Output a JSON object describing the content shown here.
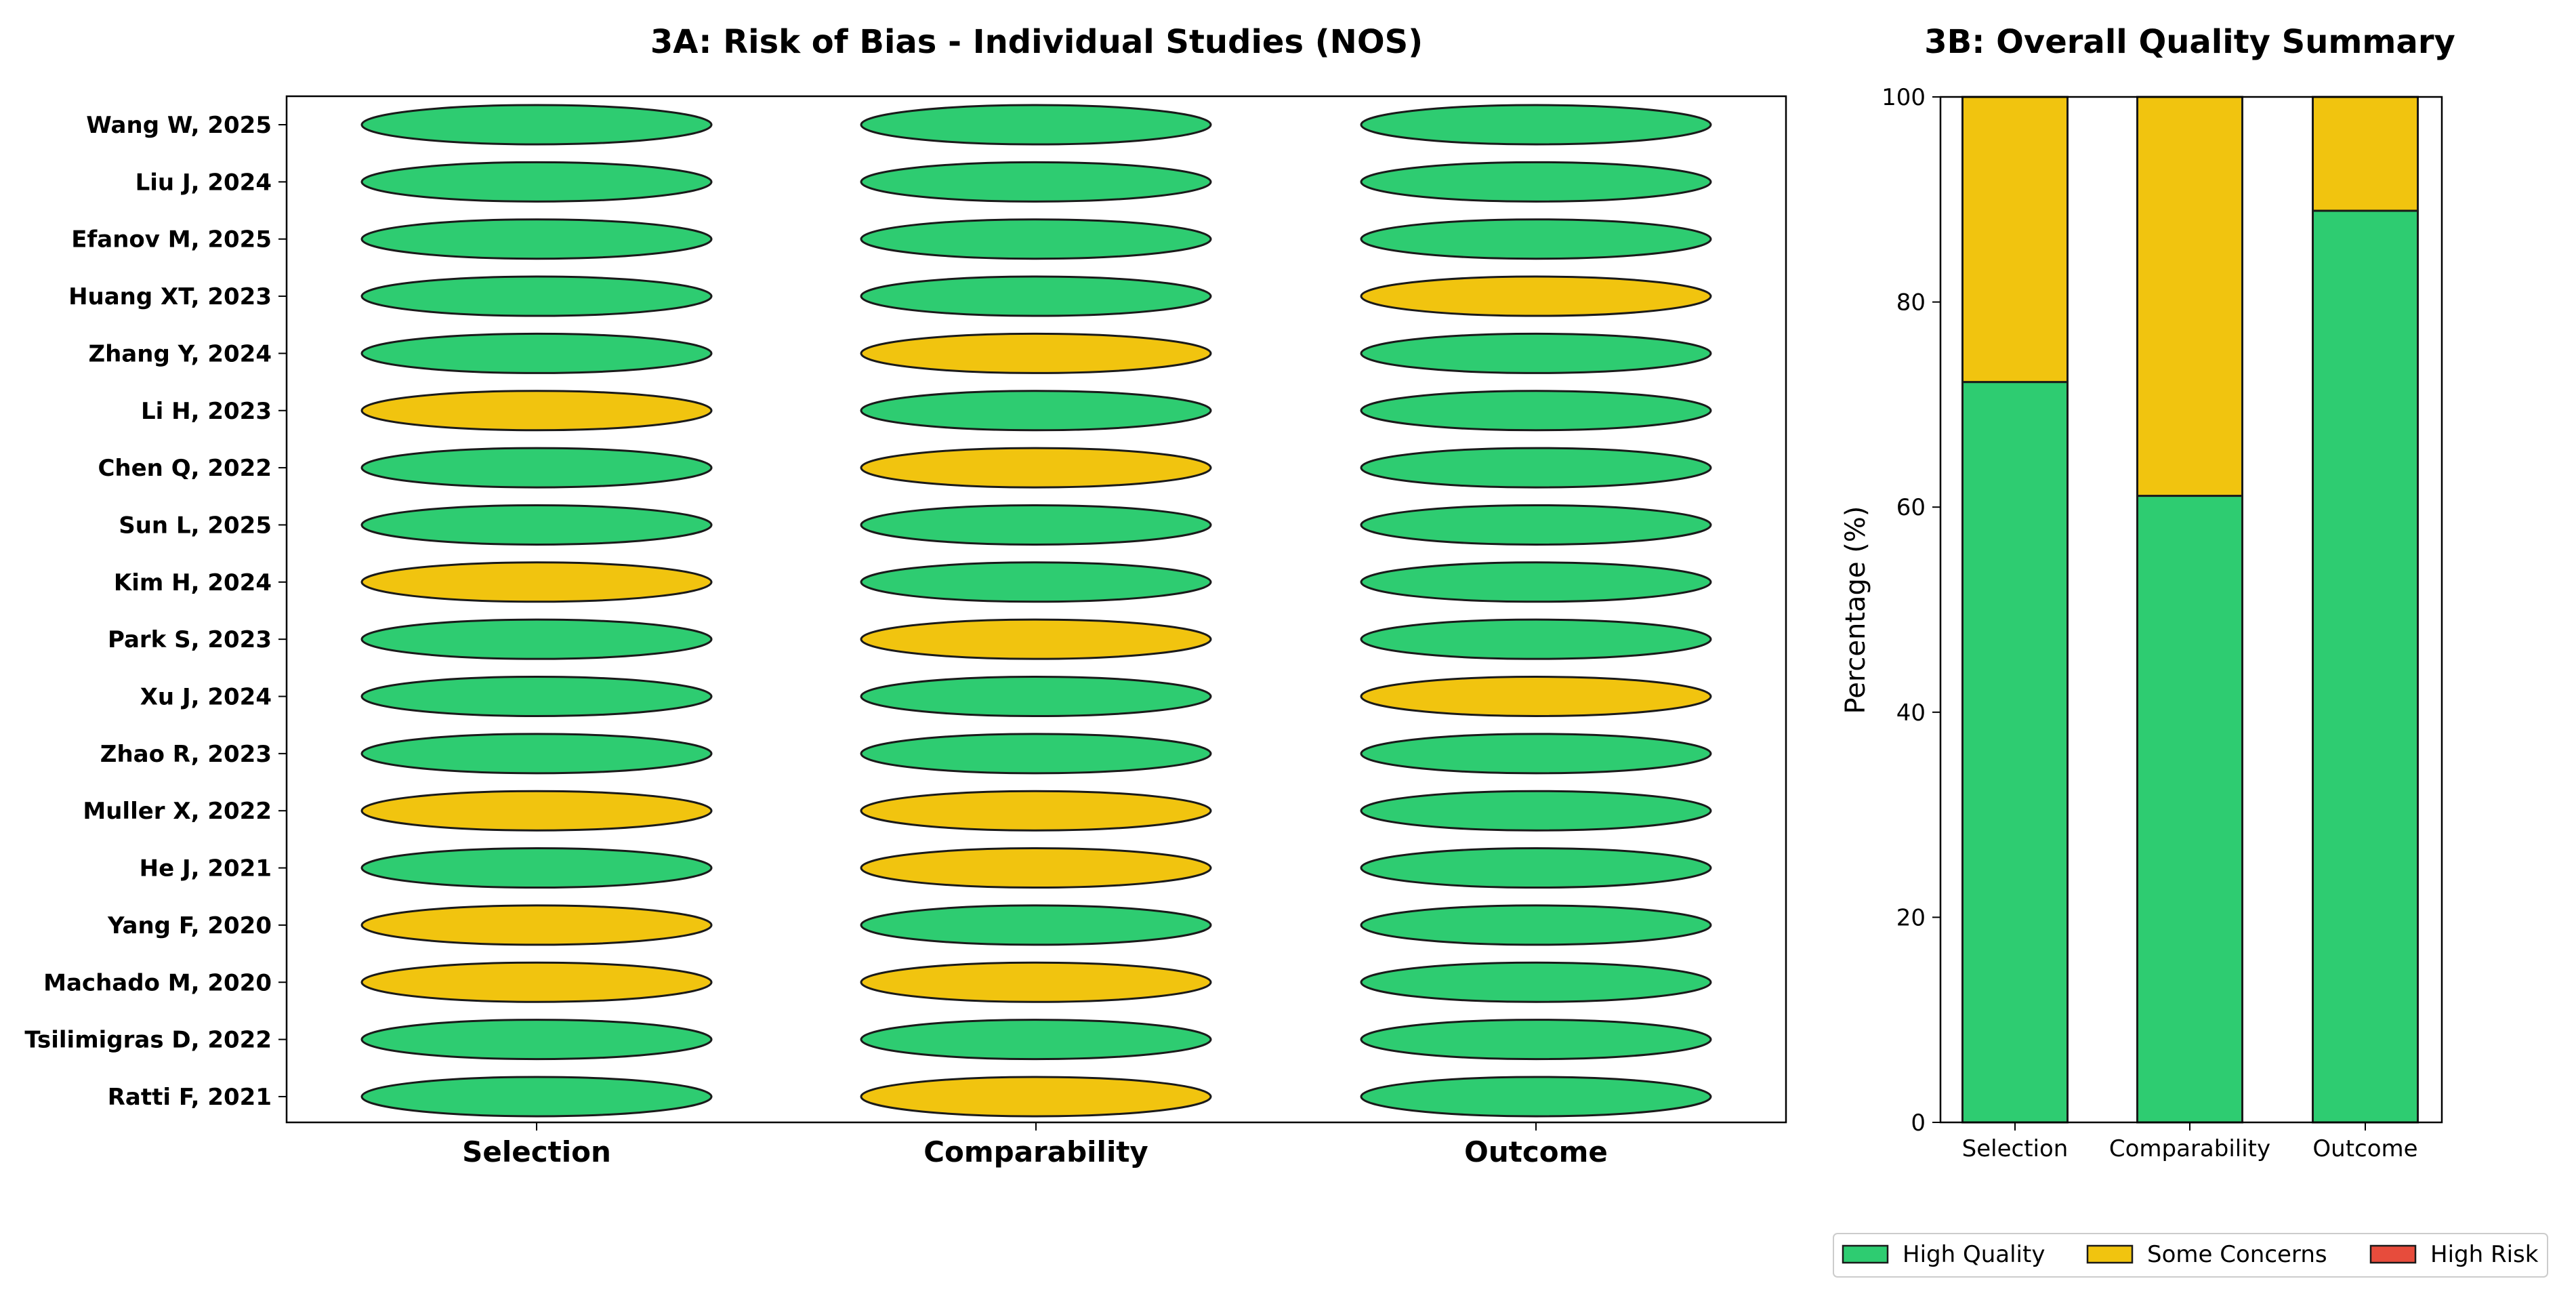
{
  "chart_data": [
    {
      "type": "table",
      "title": "3A: Risk of Bias - Individual Studies (NOS)",
      "domains": [
        "Selection",
        "Comparability",
        "Outcome"
      ],
      "studies": [
        {
          "name": "Wang W, 2025",
          "ratings": [
            "High Quality",
            "High Quality",
            "High Quality"
          ]
        },
        {
          "name": "Liu J, 2024",
          "ratings": [
            "High Quality",
            "High Quality",
            "High Quality"
          ]
        },
        {
          "name": "Efanov M, 2025",
          "ratings": [
            "High Quality",
            "High Quality",
            "High Quality"
          ]
        },
        {
          "name": "Huang XT, 2023",
          "ratings": [
            "High Quality",
            "High Quality",
            "Some Concerns"
          ]
        },
        {
          "name": "Zhang Y, 2024",
          "ratings": [
            "High Quality",
            "Some Concerns",
            "High Quality"
          ]
        },
        {
          "name": "Li H, 2023",
          "ratings": [
            "Some Concerns",
            "High Quality",
            "High Quality"
          ]
        },
        {
          "name": "Chen Q, 2022",
          "ratings": [
            "High Quality",
            "Some Concerns",
            "High Quality"
          ]
        },
        {
          "name": "Sun L, 2025",
          "ratings": [
            "High Quality",
            "High Quality",
            "High Quality"
          ]
        },
        {
          "name": "Kim H, 2024",
          "ratings": [
            "Some Concerns",
            "High Quality",
            "High Quality"
          ]
        },
        {
          "name": "Park S, 2023",
          "ratings": [
            "High Quality",
            "Some Concerns",
            "High Quality"
          ]
        },
        {
          "name": "Xu J, 2024",
          "ratings": [
            "High Quality",
            "High Quality",
            "Some Concerns"
          ]
        },
        {
          "name": "Zhao R, 2023",
          "ratings": [
            "High Quality",
            "High Quality",
            "High Quality"
          ]
        },
        {
          "name": "Muller X, 2022",
          "ratings": [
            "Some Concerns",
            "Some Concerns",
            "High Quality"
          ]
        },
        {
          "name": "He J, 2021",
          "ratings": [
            "High Quality",
            "Some Concerns",
            "High Quality"
          ]
        },
        {
          "name": "Yang F, 2020",
          "ratings": [
            "Some Concerns",
            "High Quality",
            "High Quality"
          ]
        },
        {
          "name": "Machado M, 2020",
          "ratings": [
            "Some Concerns",
            "Some Concerns",
            "High Quality"
          ]
        },
        {
          "name": "Tsilimigras D, 2022",
          "ratings": [
            "High Quality",
            "High Quality",
            "High Quality"
          ]
        },
        {
          "name": "Ratti F, 2021",
          "ratings": [
            "High Quality",
            "Some Concerns",
            "High Quality"
          ]
        }
      ]
    },
    {
      "type": "bar",
      "stacked": true,
      "title": "3B: Overall Quality Summary",
      "categories": [
        "Selection",
        "Comparability",
        "Outcome"
      ],
      "series": [
        {
          "name": "High Quality",
          "values": [
            72.2,
            61.1,
            88.9
          ]
        },
        {
          "name": "Some Concerns",
          "values": [
            27.8,
            38.9,
            11.1
          ]
        },
        {
          "name": "High Risk",
          "values": [
            0,
            0,
            0
          ]
        }
      ],
      "ylabel": "Percentage (%)",
      "ylim": [
        0,
        100
      ],
      "yticks": [
        0,
        20,
        40,
        60,
        80,
        100
      ],
      "legend": {
        "placement": "bottom-right",
        "entries": [
          "High Quality",
          "Some Concerns",
          "High Risk"
        ]
      }
    }
  ],
  "colors": {
    "High Quality": "#2ecc71",
    "Some Concerns": "#f1c40f",
    "High Risk": "#e74c3c",
    "stroke": "#1a1a1a"
  }
}
